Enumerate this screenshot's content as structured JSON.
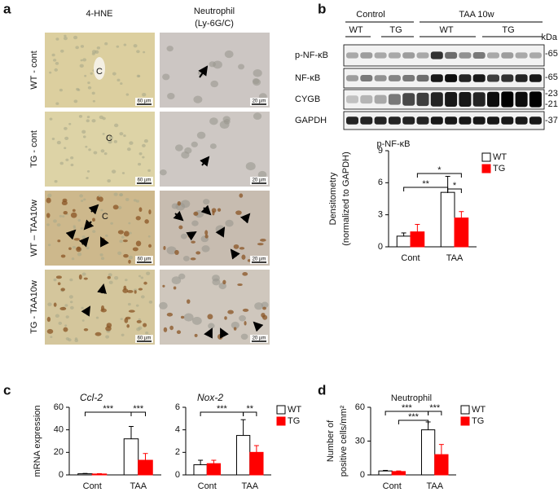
{
  "figure": {
    "panel_labels": [
      "a",
      "b",
      "c",
      "d"
    ],
    "panel_a": {
      "columns": [
        "4-HNE",
        "Neutrophil",
        "(Ly-6G/C)"
      ],
      "rows": [
        "WT - cont",
        "TG - cont",
        "WT – TAA10w",
        "TG - TAA10w"
      ],
      "scale_bars": [
        "60 µm",
        "20 µm"
      ],
      "vessel": "C"
    },
    "blot": {
      "groups": [
        "Control",
        "TAA 10w"
      ],
      "genotypes": [
        "WT",
        "TG",
        "WT",
        "TG"
      ],
      "unit": "kDa",
      "rows": [
        "p-NF-κB",
        "NF-κB",
        "CYGB",
        "GAPDH"
      ],
      "markers": [
        "-65",
        "-65",
        "-23",
        "-21",
        "-37"
      ]
    }
  },
  "chart_data": [
    {
      "type": "bar",
      "title": "p-NF-κB",
      "ylabel": [
        "Densitometry",
        "(normalized to GAPDH)"
      ],
      "categories": [
        "Cont",
        "TAA"
      ],
      "series": [
        {
          "name": "WT",
          "color": "#ffffff",
          "values": [
            1.0,
            5.1
          ],
          "errors": [
            0.3,
            1.5
          ]
        },
        {
          "name": "TG",
          "color": "#ff0000",
          "values": [
            1.4,
            2.7
          ],
          "errors": [
            0.7,
            0.6
          ]
        }
      ],
      "ylim": [
        0,
        9
      ],
      "yticks": [
        0,
        3,
        6,
        9
      ],
      "legend": true,
      "annotations": [
        "**",
        "*",
        "*"
      ]
    },
    {
      "type": "bar",
      "title": "Ccl-2",
      "ylabel": [
        "mRNA expression"
      ],
      "categories": [
        "Cont",
        "TAA"
      ],
      "series": [
        {
          "name": "WT",
          "color": "#ffffff",
          "values": [
            1,
            32
          ],
          "errors": [
            0.3,
            11
          ]
        },
        {
          "name": "TG",
          "color": "#ff0000",
          "values": [
            0.8,
            13
          ],
          "errors": [
            0.3,
            6
          ]
        }
      ],
      "ylim": [
        0,
        60
      ],
      "yticks": [
        0,
        20,
        40,
        60
      ],
      "legend": false,
      "annotations": [
        "***",
        "***"
      ]
    },
    {
      "type": "bar",
      "title": "Nox-2",
      "categories": [
        "Cont",
        "TAA"
      ],
      "series": [
        {
          "name": "WT",
          "color": "#ffffff",
          "values": [
            0.9,
            3.5
          ],
          "errors": [
            0.4,
            1.4
          ]
        },
        {
          "name": "TG",
          "color": "#ff0000",
          "values": [
            1.0,
            2.0
          ],
          "errors": [
            0.3,
            0.6
          ]
        }
      ],
      "ylim": [
        0,
        6
      ],
      "yticks": [
        0,
        2,
        4,
        6
      ],
      "legend": true,
      "annotations": [
        "***",
        "**"
      ]
    },
    {
      "type": "bar",
      "title": "Neutrophil",
      "ylabel": [
        "Number of",
        "positive cells/mm²"
      ],
      "categories": [
        "Cont",
        "TAA"
      ],
      "series": [
        {
          "name": "WT",
          "color": "#ffffff",
          "values": [
            3.5,
            40
          ],
          "errors": [
            0.5,
            7
          ]
        },
        {
          "name": "TG",
          "color": "#ff0000",
          "values": [
            3,
            18
          ],
          "errors": [
            0.5,
            9
          ]
        }
      ],
      "ylim": [
        0,
        60
      ],
      "yticks": [
        0,
        30,
        60
      ],
      "legend": true,
      "annotations": [
        "***",
        "***",
        "***"
      ]
    }
  ]
}
